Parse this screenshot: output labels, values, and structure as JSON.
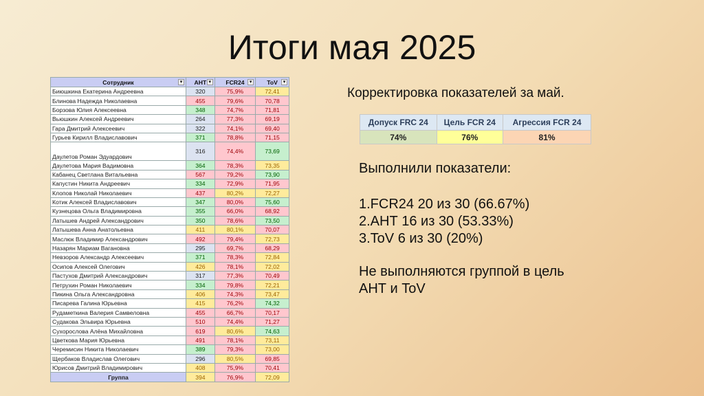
{
  "title": "Итоги мая 2025",
  "table": {
    "headers": [
      "Сотрудник",
      "АНТ",
      "FCR24",
      "ToV"
    ],
    "colors": {
      "b": "#dce3f1",
      "r": "#ffc7ce",
      "g": "#c6efce",
      "y": "#ffeb9c"
    },
    "rows": [
      [
        "Биюшкина Екатерина Андреевна",
        "320",
        "b",
        "75,9%",
        "r",
        "72,41",
        "y"
      ],
      [
        "Блинова Надежда Николаевна",
        "455",
        "r",
        "79,6%",
        "r",
        "70,78",
        "r"
      ],
      [
        "Борзова Юлия Алексеевна",
        "348",
        "g",
        "74,7%",
        "r",
        "71,81",
        "r"
      ],
      [
        "Вьюшкин Алексей Андреевич",
        "264",
        "b",
        "77,3%",
        "r",
        "69,19",
        "r"
      ],
      [
        "Гара Дмитрий Алексеевич",
        "322",
        "b",
        "74,1%",
        "r",
        "69,40",
        "r"
      ],
      [
        "Гурьев Кирилл Владиславович",
        "371",
        "g",
        "78,8%",
        "r",
        "71,15",
        "r"
      ],
      [
        "Даулетов Роман Эдуардович",
        "316",
        "b",
        "74,4%",
        "r",
        "73,69",
        "g"
      ],
      [
        "Даулетова Мария Вадимовна",
        "364",
        "g",
        "78,3%",
        "r",
        "73,35",
        "y"
      ],
      [
        "Кабанец Светлана Витальевна",
        "567",
        "r",
        "79,2%",
        "r",
        "73,90",
        "g"
      ],
      [
        "Капустин Никита Андреевич",
        "334",
        "g",
        "72,9%",
        "r",
        "71,95",
        "r"
      ],
      [
        "Клопов Николай Николаевич",
        "437",
        "r",
        "80,2%",
        "y",
        "72,27",
        "y"
      ],
      [
        "Котик Алексей Владиславович",
        "347",
        "g",
        "80,0%",
        "r",
        "75,60",
        "g"
      ],
      [
        "Кузнецова Ольга Владимировна",
        "355",
        "g",
        "66,0%",
        "r",
        "68,92",
        "r"
      ],
      [
        "Латышев Андрей Александрович",
        "350",
        "g",
        "78,6%",
        "r",
        "73,50",
        "g"
      ],
      [
        "Латышева Анна Анатольевна",
        "411",
        "y",
        "80,1%",
        "y",
        "70,07",
        "r"
      ],
      [
        "Маслюк Владимир Александрович",
        "492",
        "r",
        "79,4%",
        "r",
        "72,73",
        "y"
      ],
      [
        "Назарян Мариам Вагановна",
        "295",
        "b",
        "69,7%",
        "r",
        "68,29",
        "r"
      ],
      [
        "Невзоров Александр Алексеевич",
        "371",
        "g",
        "78,3%",
        "r",
        "72,84",
        "y"
      ],
      [
        "Осипов Алексей Олегович",
        "426",
        "y",
        "78,1%",
        "r",
        "72,02",
        "y"
      ],
      [
        "Пастухов Дмитрий Александрович",
        "317",
        "b",
        "77,3%",
        "r",
        "70,49",
        "r"
      ],
      [
        "Петрухин Роман Николаевич",
        "334",
        "g",
        "79,8%",
        "r",
        "72,21",
        "y"
      ],
      [
        "Пикина Ольга Александровна",
        "406",
        "y",
        "74,3%",
        "r",
        "73,47",
        "y"
      ],
      [
        "Писарева Галина Юрьевна",
        "415",
        "y",
        "76,2%",
        "r",
        "74,32",
        "g"
      ],
      [
        "Рудаметкина Валерия Самвеловна",
        "455",
        "r",
        "66,7%",
        "r",
        "70,17",
        "r"
      ],
      [
        "Судакова Эльвира Юрьевна",
        "510",
        "r",
        "74,4%",
        "r",
        "71,27",
        "r"
      ],
      [
        "Сухорослова Алёна Михайловна",
        "619",
        "r",
        "80,6%",
        "y",
        "74,63",
        "g"
      ],
      [
        "Цветкова Мария Юрьевна",
        "491",
        "r",
        "78,1%",
        "r",
        "73,11",
        "y"
      ],
      [
        "Черемисин Никита Николаевич",
        "389",
        "g",
        "79,3%",
        "r",
        "73,00",
        "y"
      ],
      [
        "Щербаков Владислав Олегович",
        "296",
        "b",
        "80,5%",
        "y",
        "69,85",
        "r"
      ],
      [
        "Юрисов Дмитрий Владимирович",
        "408",
        "y",
        "75,9%",
        "r",
        "70,41",
        "r"
      ]
    ],
    "group": [
      "Группа",
      "394",
      "y",
      "76,9%",
      "r",
      "72,09",
      "y"
    ]
  },
  "subtitle": "Корректировка показателей за май.",
  "targets": {
    "headers": [
      "Допуск FRC 24",
      "Цель  FCR 24",
      "Агрессия  FCR 24"
    ],
    "values": [
      "74%",
      "76%",
      "81%"
    ],
    "colors": [
      "#d8e4bc",
      "#ffff99",
      "#fcd5b4"
    ]
  },
  "done_heading": "Выполнили показатели:",
  "done_items": [
    "1.FCR24 20 из 30 (66.67%)",
    "2.АНТ 16 из 30  (53.33%)",
    "3.ToV 6 из 30 (20%)"
  ],
  "not_done": [
    "Не выполняются группой в цель",
    "АНТ и ToV"
  ]
}
